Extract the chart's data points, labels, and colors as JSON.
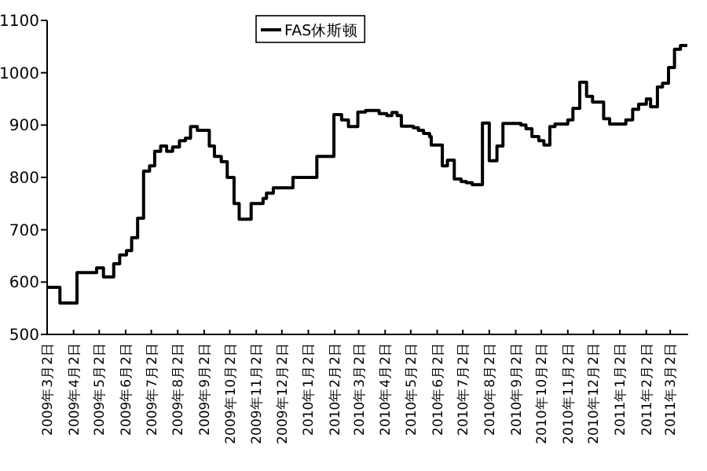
{
  "chart_data": {
    "type": "step",
    "legend": "top",
    "x": [
      "2009-03-02",
      "2009-03-17",
      "2009-04-06",
      "2009-04-29",
      "2009-05-07",
      "2009-05-19",
      "2009-05-26",
      "2009-06-03",
      "2009-06-09",
      "2009-06-16",
      "2009-06-23",
      "2009-06-30",
      "2009-07-06",
      "2009-07-13",
      "2009-07-20",
      "2009-07-27",
      "2009-08-04",
      "2009-08-11",
      "2009-08-17",
      "2009-08-25",
      "2009-09-08",
      "2009-09-14",
      "2009-09-22",
      "2009-09-29",
      "2009-10-07",
      "2009-10-13",
      "2009-10-27",
      "2009-11-10",
      "2009-11-14",
      "2009-11-22",
      "2009-12-15",
      "2010-01-12",
      "2010-02-01",
      "2010-02-10",
      "2010-02-18",
      "2010-03-01",
      "2010-03-10",
      "2010-03-26",
      "2010-04-04",
      "2010-04-10",
      "2010-04-16",
      "2010-04-21",
      "2010-05-05",
      "2010-05-11",
      "2010-05-17",
      "2010-05-24",
      "2010-05-26",
      "2010-06-08",
      "2010-06-14",
      "2010-06-22",
      "2010-06-30",
      "2010-07-06",
      "2010-07-13",
      "2010-07-25",
      "2010-08-02",
      "2010-08-11",
      "2010-08-18",
      "2010-09-08",
      "2010-09-14",
      "2010-09-21",
      "2010-09-29",
      "2010-10-05",
      "2010-10-12",
      "2010-10-18",
      "2010-11-02",
      "2010-11-08",
      "2010-11-16",
      "2010-11-24",
      "2010-12-01",
      "2010-12-14",
      "2010-12-21",
      "2011-01-09",
      "2011-01-17",
      "2011-01-24",
      "2011-02-02",
      "2011-02-07",
      "2011-02-15",
      "2011-02-21",
      "2011-02-28",
      "2011-03-07",
      "2011-03-14",
      "2011-03-22"
    ],
    "series": [
      {
        "name": "FAS休斯顿",
        "color": "#000000",
        "values": [
          590,
          560,
          618,
          627,
          610,
          635,
          652,
          660,
          685,
          722,
          812,
          822,
          850,
          860,
          850,
          858,
          870,
          875,
          897,
          890,
          860,
          840,
          830,
          800,
          750,
          720,
          750,
          760,
          770,
          780,
          800,
          840,
          920,
          910,
          897,
          925,
          928,
          922,
          918,
          924,
          918,
          898,
          895,
          890,
          884,
          878,
          862,
          822,
          833,
          797,
          792,
          790,
          786,
          904,
          832,
          860,
          903,
          900,
          893,
          878,
          870,
          862,
          897,
          902,
          910,
          932,
          982,
          955,
          944,
          912,
          902,
          910,
          930,
          940,
          950,
          935,
          973,
          980,
          1010,
          1045,
          1052,
          1052
        ]
      }
    ],
    "xlim": [
      "2009-03-02",
      "2011-03-23"
    ],
    "ylim": [
      500,
      1100
    ],
    "yticks": [
      500,
      600,
      700,
      800,
      900,
      1000,
      1100
    ],
    "xticks": [
      {
        "value": "2009-03-02",
        "label": "2009年3月2日"
      },
      {
        "value": "2009-04-02",
        "label": "2009年4月2日"
      },
      {
        "value": "2009-05-02",
        "label": "2009年5月2日"
      },
      {
        "value": "2009-06-02",
        "label": "2009年6月2日"
      },
      {
        "value": "2009-07-02",
        "label": "2009年7月2日"
      },
      {
        "value": "2009-08-02",
        "label": "2009年8月2日"
      },
      {
        "value": "2009-09-02",
        "label": "2009年9月2日"
      },
      {
        "value": "2009-10-02",
        "label": "2009年10月2日"
      },
      {
        "value": "2009-11-02",
        "label": "2009年11月2日"
      },
      {
        "value": "2009-12-02",
        "label": "2009年12月2日"
      },
      {
        "value": "2010-01-02",
        "label": "2010年1月2日"
      },
      {
        "value": "2010-02-02",
        "label": "2010年2月2日"
      },
      {
        "value": "2010-03-02",
        "label": "2010年3月2日"
      },
      {
        "value": "2010-04-02",
        "label": "2010年4月2日"
      },
      {
        "value": "2010-05-02",
        "label": "2010年5月2日"
      },
      {
        "value": "2010-06-02",
        "label": "2010年6月2日"
      },
      {
        "value": "2010-07-02",
        "label": "2010年7月2日"
      },
      {
        "value": "2010-08-02",
        "label": "2010年8月2日"
      },
      {
        "value": "2010-09-02",
        "label": "2010年9月2日"
      },
      {
        "value": "2010-10-02",
        "label": "2010年10月2日"
      },
      {
        "value": "2010-11-02",
        "label": "2010年11月2日"
      },
      {
        "value": "2010-12-02",
        "label": "2010年12月2日"
      },
      {
        "value": "2011-01-02",
        "label": "2011年1月2日"
      },
      {
        "value": "2011-02-02",
        "label": "2011年2月2日"
      },
      {
        "value": "2011-03-02",
        "label": "2011年3月2日"
      }
    ]
  }
}
